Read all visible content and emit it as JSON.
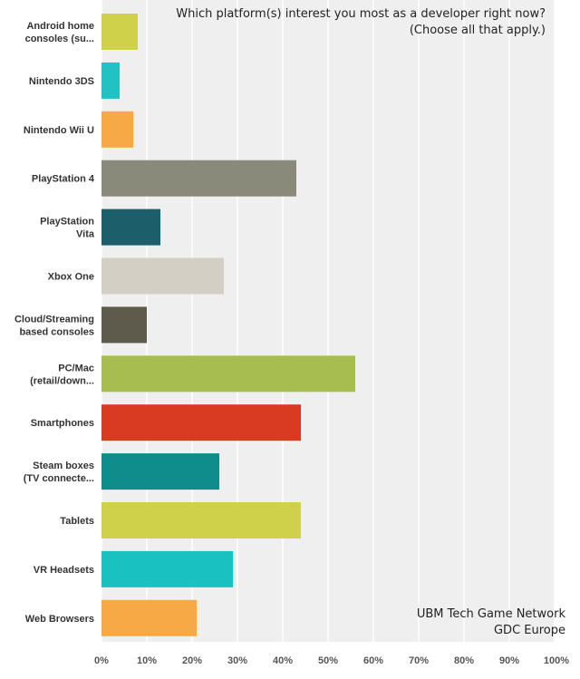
{
  "chart_data": {
    "type": "bar",
    "orientation": "horizontal",
    "title_lines": [
      "Which platform(s) interest you most as a developer right now?",
      "(Choose all that apply.)"
    ],
    "categories": [
      [
        "Android home",
        "consoles (su..."
      ],
      [
        "Nintendo 3DS"
      ],
      [
        "Nintendo Wii U"
      ],
      [
        "PlayStation 4"
      ],
      [
        "PlayStation",
        "Vita"
      ],
      [
        "Xbox One"
      ],
      [
        "Cloud/Streaming",
        "based consoles"
      ],
      [
        "PC/Mac",
        "(retail/down..."
      ],
      [
        "Smartphones"
      ],
      [
        "Steam boxes",
        "(TV connecte..."
      ],
      [
        "Tablets"
      ],
      [
        "VR Headsets"
      ],
      [
        "Web Browsers"
      ]
    ],
    "values": [
      8,
      4,
      7,
      43,
      13,
      27,
      10,
      56,
      44,
      26,
      44,
      29,
      21
    ],
    "colors": [
      "#cfd14b",
      "#22c1c3",
      "#f7a945",
      "#8a8a7b",
      "#1c5f6b",
      "#d3cfc4",
      "#5e5a4c",
      "#a8bd4f",
      "#d93a22",
      "#0f8c8c",
      "#cfd14b",
      "#19c2c0",
      "#f7a945"
    ],
    "xlim": [
      0,
      100
    ],
    "xticks": [
      "0%",
      "10%",
      "20%",
      "30%",
      "40%",
      "50%",
      "60%",
      "70%",
      "80%",
      "90%",
      "100%"
    ],
    "annotation_lines": [
      "UBM Tech Game Network",
      "GDC Europe"
    ],
    "grid": true,
    "plot_background": "#efefef",
    "grid_color": "#ffffff"
  }
}
